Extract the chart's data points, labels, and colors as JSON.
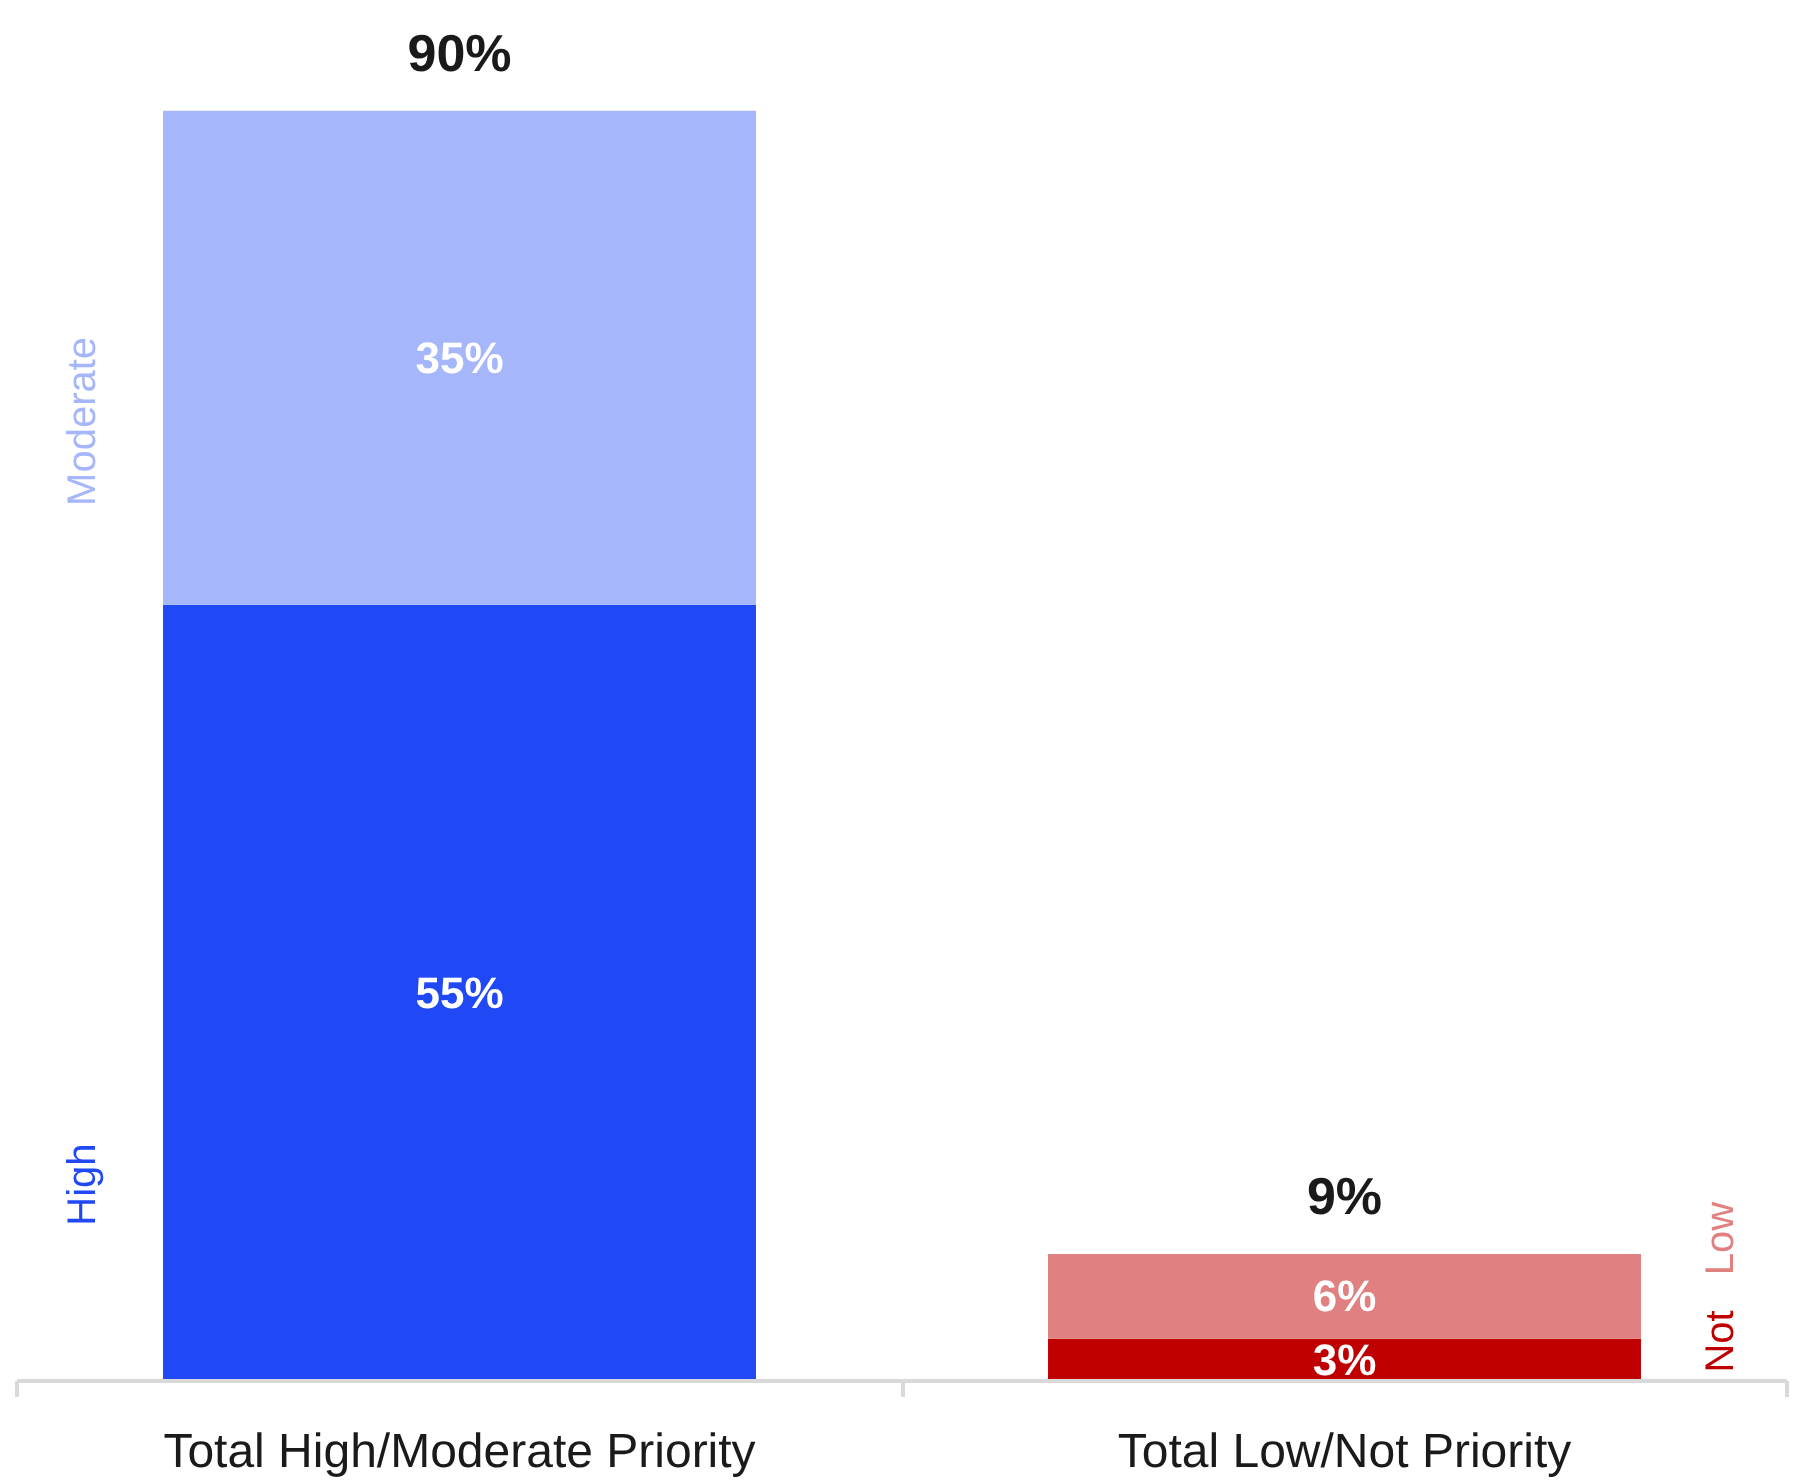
{
  "chart_data": {
    "type": "bar",
    "stacked": true,
    "categories": [
      "Total High/Moderate Priority",
      "Total Low/Not Priority"
    ],
    "series": [
      {
        "name": "High",
        "color": "#2049f5",
        "values": [
          55,
          null
        ],
        "value_labels": [
          "55%",
          null
        ]
      },
      {
        "name": "Moderate",
        "color": "#a6b6fa",
        "values": [
          35,
          null
        ],
        "value_labels": [
          "35%",
          null
        ]
      },
      {
        "name": "Not",
        "color": "#c00000",
        "values": [
          null,
          3
        ],
        "value_labels": [
          null,
          "3%"
        ]
      },
      {
        "name": "Low",
        "color": "#e08080",
        "values": [
          null,
          6
        ],
        "value_labels": [
          null,
          "6%"
        ]
      }
    ],
    "totals": [
      "90%",
      "9%"
    ]
  }
}
